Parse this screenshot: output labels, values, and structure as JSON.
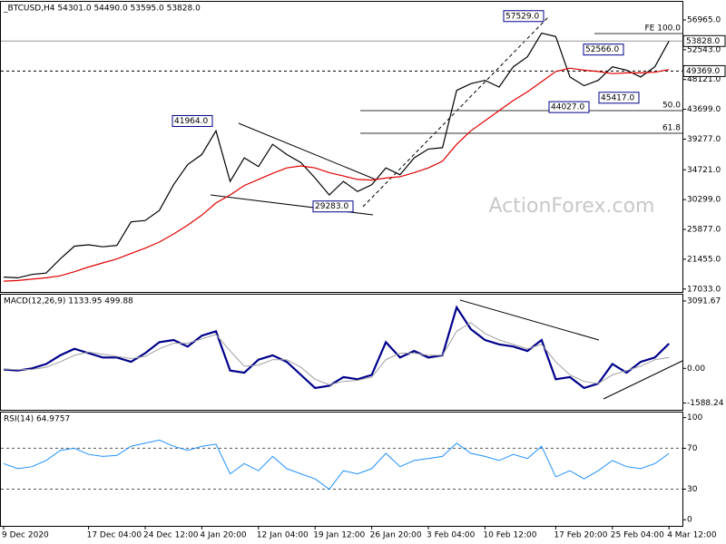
{
  "chart_data": [
    {
      "type": "line",
      "title": "_BTCUSD,H4 54301.0 54490.0 53595.0 53828.0",
      "ylim": [
        16600,
        59650
      ],
      "yticks": [
        {
          "value": 56965,
          "label": "56965.0"
        },
        {
          "value": 52543,
          "label": "52543.0"
        },
        {
          "value": 48121,
          "label": "48121.0"
        },
        {
          "value": 43699,
          "label": "43699.0"
        },
        {
          "value": 39277,
          "label": "39277.0"
        },
        {
          "value": 34721,
          "label": "34721.0"
        },
        {
          "value": 30299,
          "label": "30299.0"
        },
        {
          "value": 25877,
          "label": "25877.0"
        },
        {
          "value": 21455,
          "label": "21455.0"
        },
        {
          "value": 17033,
          "label": "17033.0"
        }
      ],
      "series": [
        {
          "color": "#000000",
          "values": [
            18800,
            18700,
            19200,
            19400,
            21500,
            23400,
            23600,
            23300,
            23500,
            27000,
            27200,
            28700,
            32500,
            35500,
            37000,
            40500,
            33000,
            36500,
            35200,
            38500,
            37000,
            35800,
            33500,
            31000,
            33000,
            31500,
            32500,
            35000,
            34000,
            36500,
            37800,
            38000,
            46500,
            47500,
            48000,
            47000,
            50000,
            51500,
            55000,
            54500,
            48500,
            47200,
            48000,
            50000,
            49500,
            48500,
            50000,
            53828
          ]
        },
        {
          "color": "#e00000",
          "values": [
            18200,
            18300,
            18500,
            18700,
            19000,
            19600,
            20300,
            20900,
            21500,
            22300,
            23100,
            24000,
            25200,
            26500,
            28000,
            29800,
            31000,
            32400,
            33300,
            34200,
            35000,
            35300,
            35000,
            34300,
            33800,
            33300,
            33200,
            33500,
            33700,
            34300,
            35000,
            36000,
            38500,
            40500,
            42000,
            43500,
            45000,
            46300,
            47800,
            49300,
            49800,
            49500,
            49300,
            49000,
            49100,
            49100,
            49200,
            49600
          ]
        }
      ],
      "price_line": {
        "value": 53828,
        "label": "53828.0"
      },
      "level_line": {
        "value": 49369,
        "label": "49369.0"
      },
      "fib_lines": [
        {
          "value": 54942,
          "label": "FE 100.0"
        },
        {
          "value": 43510,
          "label": "50.0"
        },
        {
          "value": 40150,
          "label": "61.8"
        }
      ],
      "annotations": [
        {
          "value": 57529,
          "label": "57529.0"
        },
        {
          "value": 52566,
          "label": "52566.0"
        },
        {
          "value": 44027,
          "label": "44027.0"
        },
        {
          "value": 45417,
          "label": "45417.0"
        },
        {
          "value": 41964,
          "label": "41964.0"
        },
        {
          "value": 29283,
          "label": "29283.0"
        }
      ],
      "watermark": "ActionForex.com"
    },
    {
      "type": "line",
      "title": "MACD(12,26,9) 1133.95 499.88",
      "ylim": [
        -1900,
        3380
      ],
      "yticks": [
        3091.67,
        {
          "value": 0,
          "label": "0.00"
        },
        -1588.24
      ],
      "series": [
        {
          "color": "#00008b",
          "width": 2.2,
          "values": [
            -50,
            -100,
            0,
            200,
            600,
            900,
            700,
            500,
            500,
            300,
            700,
            1200,
            1300,
            1000,
            1500,
            1700,
            -100,
            -200,
            400,
            600,
            300,
            -300,
            -900,
            -800,
            -400,
            -500,
            -300,
            1200,
            500,
            800,
            500,
            600,
            2800,
            1800,
            1300,
            1100,
            1000,
            800,
            1300,
            -500,
            -400,
            -900,
            -700,
            200,
            -200,
            300,
            500,
            1133.95
          ]
        },
        {
          "color": "#a0a0a0",
          "width": 1,
          "values": [
            -30,
            -60,
            -50,
            50,
            300,
            600,
            750,
            650,
            550,
            450,
            550,
            900,
            1150,
            1150,
            1350,
            1550,
            800,
            100,
            150,
            400,
            400,
            50,
            -500,
            -750,
            -600,
            -550,
            -400,
            400,
            700,
            700,
            600,
            600,
            1700,
            2100,
            1600,
            1300,
            1100,
            900,
            1100,
            300,
            -300,
            -600,
            -700,
            -300,
            -100,
            100,
            400,
            499.88
          ]
        }
      ]
    },
    {
      "type": "line",
      "title": "RSI(14) 64.9757",
      "ylim": [
        -6,
        105
      ],
      "yticks": [
        100,
        70,
        30,
        0
      ],
      "level_lines": [
        70,
        30
      ],
      "series": [
        {
          "color": "#1e90ff",
          "width": 1,
          "values": [
            55,
            50,
            52,
            58,
            68,
            70,
            64,
            62,
            63,
            72,
            75,
            78,
            72,
            68,
            72,
            74,
            45,
            55,
            48,
            62,
            50,
            45,
            40,
            30,
            48,
            45,
            50,
            65,
            52,
            58,
            60,
            62,
            75,
            65,
            62,
            58,
            64,
            60,
            72,
            42,
            48,
            40,
            48,
            58,
            52,
            50,
            55,
            64.9757
          ]
        }
      ],
      "categories": [
        "9 Dec 2020",
        null,
        null,
        null,
        null,
        null,
        "17 Dec 04:00",
        null,
        null,
        null,
        "24 Dec 12:00",
        null,
        null,
        null,
        "4 Jan 20:00",
        null,
        null,
        null,
        "12 Jan 04:00",
        null,
        null,
        null,
        "19 Jan 12:00",
        null,
        null,
        null,
        "26 Jan 20:00",
        null,
        null,
        null,
        "3 Feb 04:00",
        null,
        null,
        null,
        "10 Feb 12:00",
        null,
        null,
        null,
        null,
        "17 Feb 20:00",
        null,
        null,
        null,
        "25 Feb 04:00",
        null,
        null,
        null,
        "4 Mar 12:00"
      ]
    }
  ]
}
